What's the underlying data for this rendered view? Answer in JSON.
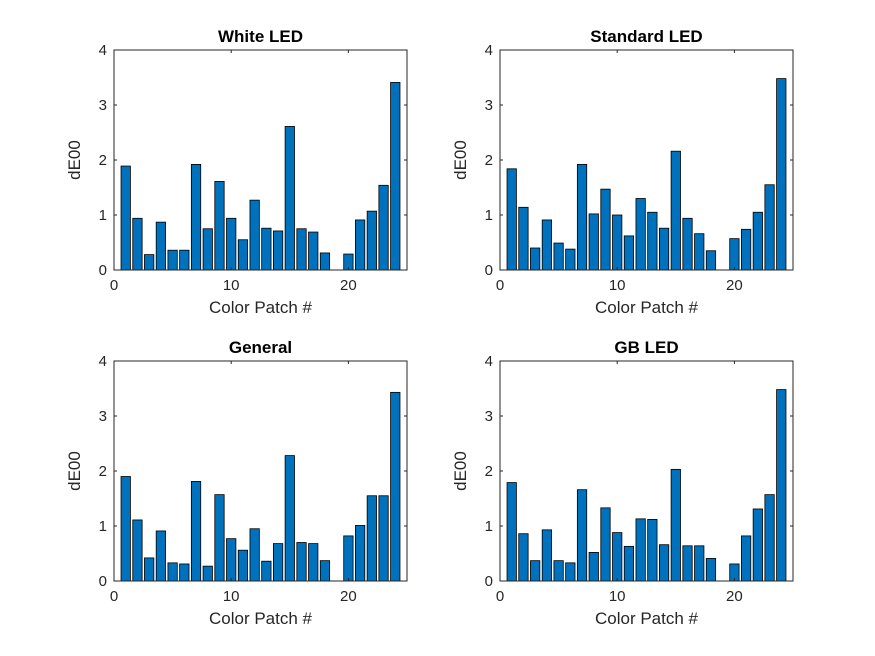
{
  "chart_data": [
    {
      "type": "bar",
      "title": "White LED",
      "xlabel": "Color Patch #",
      "ylabel": "dE00",
      "x": [
        1,
        2,
        3,
        4,
        5,
        6,
        7,
        8,
        9,
        10,
        11,
        12,
        13,
        14,
        15,
        16,
        17,
        18,
        19,
        20,
        21,
        22,
        23,
        24
      ],
      "values": [
        1.89,
        0.94,
        0.28,
        0.87,
        0.36,
        0.36,
        1.92,
        0.75,
        1.61,
        0.94,
        0.55,
        1.27,
        0.76,
        0.71,
        2.61,
        0.75,
        0.69,
        0.31,
        0.0,
        0.29,
        0.91,
        1.07,
        1.54,
        3.41
      ],
      "xlim": [
        0,
        25
      ],
      "ylim": [
        0,
        4
      ],
      "xticks": [
        0,
        10,
        20
      ],
      "yticks": [
        0,
        1,
        2,
        3,
        4
      ],
      "color": "#0072BD"
    },
    {
      "type": "bar",
      "title": "Standard LED",
      "xlabel": "Color Patch #",
      "ylabel": "dE00",
      "x": [
        1,
        2,
        3,
        4,
        5,
        6,
        7,
        8,
        9,
        10,
        11,
        12,
        13,
        14,
        15,
        16,
        17,
        18,
        19,
        20,
        21,
        22,
        23,
        24
      ],
      "values": [
        1.84,
        1.14,
        0.4,
        0.91,
        0.49,
        0.38,
        1.92,
        1.02,
        1.47,
        1.0,
        0.62,
        1.3,
        1.05,
        0.76,
        2.16,
        0.94,
        0.66,
        0.35,
        0.0,
        0.57,
        0.74,
        1.05,
        1.55,
        3.48
      ],
      "xlim": [
        0,
        25
      ],
      "ylim": [
        0,
        4
      ],
      "xticks": [
        0,
        10,
        20
      ],
      "yticks": [
        0,
        1,
        2,
        3,
        4
      ],
      "color": "#0072BD"
    },
    {
      "type": "bar",
      "title": "General",
      "xlabel": "Color Patch #",
      "ylabel": "dE00",
      "x": [
        1,
        2,
        3,
        4,
        5,
        6,
        7,
        8,
        9,
        10,
        11,
        12,
        13,
        14,
        15,
        16,
        17,
        18,
        19,
        20,
        21,
        22,
        23,
        24
      ],
      "values": [
        1.9,
        1.11,
        0.42,
        0.91,
        0.33,
        0.31,
        1.81,
        0.27,
        1.57,
        0.77,
        0.56,
        0.95,
        0.36,
        0.68,
        2.28,
        0.7,
        0.68,
        0.37,
        0.0,
        0.82,
        1.01,
        1.55,
        1.55,
        3.43
      ],
      "xlim": [
        0,
        25
      ],
      "ylim": [
        0,
        4
      ],
      "xticks": [
        0,
        10,
        20
      ],
      "yticks": [
        0,
        1,
        2,
        3,
        4
      ],
      "color": "#0072BD"
    },
    {
      "type": "bar",
      "title": "GB LED",
      "xlabel": "Color Patch #",
      "ylabel": "dE00",
      "x": [
        1,
        2,
        3,
        4,
        5,
        6,
        7,
        8,
        9,
        10,
        11,
        12,
        13,
        14,
        15,
        16,
        17,
        18,
        19,
        20,
        21,
        22,
        23,
        24
      ],
      "values": [
        1.79,
        0.86,
        0.37,
        0.93,
        0.37,
        0.33,
        1.66,
        0.52,
        1.33,
        0.88,
        0.63,
        1.13,
        1.12,
        0.66,
        2.03,
        0.64,
        0.64,
        0.41,
        0.0,
        0.31,
        0.82,
        1.31,
        1.57,
        3.48
      ],
      "xlim": [
        0,
        25
      ],
      "ylim": [
        0,
        4
      ],
      "xticks": [
        0,
        10,
        20
      ],
      "yticks": [
        0,
        1,
        2,
        3,
        4
      ],
      "color": "#0072BD"
    }
  ]
}
